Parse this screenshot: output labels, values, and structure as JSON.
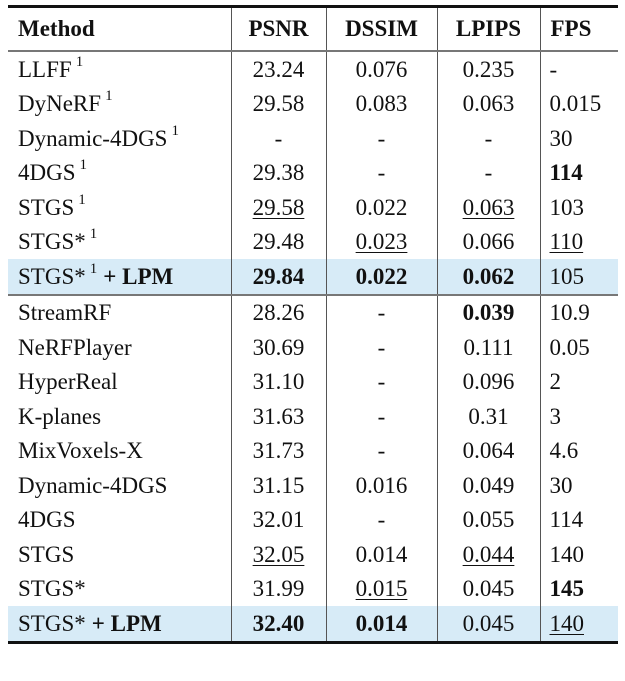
{
  "table": {
    "headers": [
      "Method",
      "PSNR",
      "DSSIM",
      "LPIPS",
      "FPS"
    ],
    "groups": [
      {
        "rows": [
          {
            "method": "LLFF",
            "sup": "1",
            "suffix": "",
            "psnr": "23.24",
            "dssim": "0.076",
            "lpips": "0.235",
            "fps": "-",
            "highlight": false,
            "style": {}
          },
          {
            "method": "DyNeRF",
            "sup": "1",
            "suffix": "",
            "psnr": "29.58",
            "dssim": "0.083",
            "lpips": "0.063",
            "fps": "0.015",
            "highlight": false,
            "style": {}
          },
          {
            "method": "Dynamic-4DGS",
            "sup": "1",
            "suffix": "",
            "psnr": "-",
            "dssim": "-",
            "lpips": "-",
            "fps": "30",
            "highlight": false,
            "style": {}
          },
          {
            "method": "4DGS",
            "sup": "1",
            "suffix": "",
            "psnr": "29.38",
            "dssim": "-",
            "lpips": "-",
            "fps": "114",
            "highlight": false,
            "style": {
              "fps": "bold"
            }
          },
          {
            "method": "STGS",
            "sup": "1",
            "suffix": "",
            "psnr": "29.58",
            "dssim": "0.022",
            "lpips": "0.063",
            "fps": "103",
            "highlight": false,
            "style": {
              "psnr": "underline",
              "lpips": "underline"
            }
          },
          {
            "method": "STGS*",
            "sup": "1",
            "suffix": "",
            "psnr": "29.48",
            "dssim": "0.023",
            "lpips": "0.066",
            "fps": "110",
            "highlight": false,
            "style": {
              "dssim": "underline",
              "fps": "underline"
            }
          },
          {
            "method": "STGS*",
            "sup": "1",
            "suffix": "+ LPM",
            "psnr": "29.84",
            "dssim": "0.022",
            "lpips": "0.062",
            "fps": "105",
            "highlight": true,
            "style": {
              "psnr": "bold",
              "dssim": "bold",
              "lpips": "bold"
            }
          }
        ]
      },
      {
        "rows": [
          {
            "method": "StreamRF",
            "sup": "",
            "suffix": "",
            "psnr": "28.26",
            "dssim": "-",
            "lpips": "0.039",
            "fps": "10.9",
            "highlight": false,
            "style": {
              "lpips": "bold"
            }
          },
          {
            "method": "NeRFPlayer",
            "sup": "",
            "suffix": "",
            "psnr": "30.69",
            "dssim": "-",
            "lpips": "0.111",
            "fps": "0.05",
            "highlight": false,
            "style": {}
          },
          {
            "method": "HyperReal",
            "sup": "",
            "suffix": "",
            "psnr": "31.10",
            "dssim": "-",
            "lpips": "0.096",
            "fps": "2",
            "highlight": false,
            "style": {}
          },
          {
            "method": "K-planes",
            "sup": "",
            "suffix": "",
            "psnr": "31.63",
            "dssim": "-",
            "lpips": "0.31",
            "fps": "3",
            "highlight": false,
            "style": {}
          },
          {
            "method": "MixVoxels-X",
            "sup": "",
            "suffix": "",
            "psnr": "31.73",
            "dssim": "-",
            "lpips": "0.064",
            "fps": "4.6",
            "highlight": false,
            "style": {}
          },
          {
            "method": "Dynamic-4DGS",
            "sup": "",
            "suffix": "",
            "psnr": "31.15",
            "dssim": "0.016",
            "lpips": "0.049",
            "fps": "30",
            "highlight": false,
            "style": {}
          },
          {
            "method": "4DGS",
            "sup": "",
            "suffix": "",
            "psnr": "32.01",
            "dssim": "-",
            "lpips": "0.055",
            "fps": "114",
            "highlight": false,
            "style": {}
          },
          {
            "method": "STGS",
            "sup": "",
            "suffix": "",
            "psnr": "32.05",
            "dssim": "0.014",
            "lpips": "0.044",
            "fps": "140",
            "highlight": false,
            "style": {
              "psnr": "underline",
              "lpips": "underline"
            }
          },
          {
            "method": "STGS*",
            "sup": "",
            "suffix": "",
            "psnr": "31.99",
            "dssim": "0.015",
            "lpips": "0.045",
            "fps": "145",
            "highlight": false,
            "style": {
              "dssim": "underline",
              "fps": "bold"
            }
          },
          {
            "method": "STGS*",
            "sup": "",
            "suffix": "+ LPM",
            "psnr": "32.40",
            "dssim": "0.014",
            "lpips": "0.045",
            "fps": "140",
            "highlight": true,
            "style": {
              "psnr": "bold",
              "dssim": "bold",
              "fps": "underline"
            }
          }
        ]
      }
    ],
    "colors": {
      "highlight_row": "#d7ebf7",
      "rule_heavy": "#111111",
      "rule_light": "#777777"
    }
  }
}
